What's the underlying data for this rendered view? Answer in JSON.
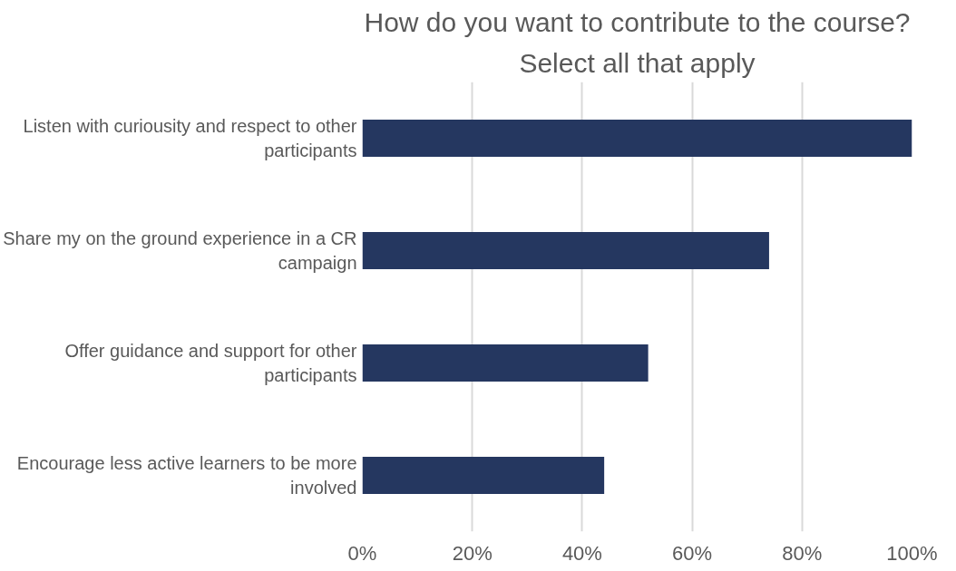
{
  "chart_data": {
    "type": "bar",
    "orientation": "horizontal",
    "title": "How do you want to contribute to the course?",
    "subtitle": "Select all that apply",
    "categories": [
      "Listen with curiousity and respect to other participants",
      "Share my on the ground experience in a CR campaign",
      "Offer guidance and support for other participants",
      "Encourage less active learners to be more involved"
    ],
    "values": [
      100,
      74,
      52,
      44
    ],
    "color": "#253760",
    "xlim": [
      0,
      100
    ],
    "xticks": [
      {
        "value": 0,
        "label": "0%"
      },
      {
        "value": 20,
        "label": "20%"
      },
      {
        "value": 40,
        "label": "40%"
      },
      {
        "value": 60,
        "label": "60%"
      },
      {
        "value": 80,
        "label": "80%"
      },
      {
        "value": 100,
        "label": "100%"
      }
    ],
    "grid": "x"
  }
}
